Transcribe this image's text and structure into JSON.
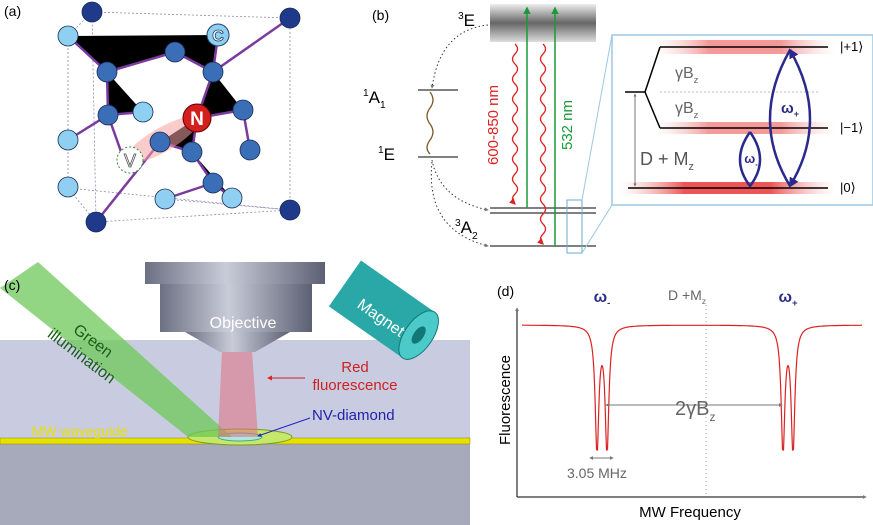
{
  "panel_a": {
    "label": "(a)",
    "atoms": {
      "carbon": "C",
      "nitrogen": "N",
      "vacancy": "V"
    }
  },
  "panel_b": {
    "label": "(b)",
    "levels": {
      "excited": {
        "sup": "3",
        "main": "E"
      },
      "singlet_upper": {
        "sup": "1",
        "main": "A",
        "sub": "1"
      },
      "singlet_lower": {
        "sup": "1",
        "main": "E"
      },
      "ground": {
        "sup": "3",
        "main": "A",
        "sub": "2"
      }
    },
    "emission": "600-850 nm",
    "excitation": "532 nm",
    "zeeman_upper": {
      "main": "γB",
      "sub": "z"
    },
    "zeeman_lower": {
      "main": "γB",
      "sub": "z"
    },
    "zero_field": {
      "main": "D + M",
      "sub": "z"
    },
    "omega_plus": {
      "main": "ω",
      "sub": "+"
    },
    "omega_minus": {
      "main": "ω",
      "sub": "-"
    },
    "states": [
      "|+1⟩",
      "|−1⟩",
      "|0⟩"
    ]
  },
  "panel_c": {
    "label": "(c)",
    "beam": [
      "Green",
      "illumination"
    ],
    "objective": "Objective",
    "magnet": "Magnet",
    "fluorescence": [
      "Red",
      "fluorescence"
    ],
    "sample": "NV-diamond",
    "waveguide": "MW waveguide"
  },
  "panel_d": {
    "label": "(d)",
    "center": {
      "main": "D +M",
      "sub": "z"
    },
    "omega_minus": {
      "main": "ω",
      "sub": "-"
    },
    "omega_plus": {
      "main": "ω",
      "sub": "+"
    },
    "y_label": "Fluorescence",
    "x_label": "MW Frequency",
    "splitting": {
      "main": "2γB",
      "sub": "z"
    },
    "hyperfine": "3.05 MHz"
  }
}
